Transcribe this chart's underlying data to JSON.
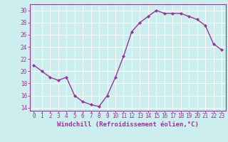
{
  "x": [
    0,
    1,
    2,
    3,
    4,
    5,
    6,
    7,
    8,
    9,
    10,
    11,
    12,
    13,
    14,
    15,
    16,
    17,
    18,
    19,
    20,
    21,
    22,
    23
  ],
  "y": [
    21,
    20,
    19,
    18.5,
    19,
    16,
    15,
    14.5,
    14.2,
    16,
    19,
    22.5,
    26.5,
    28,
    29,
    30,
    29.5,
    29.5,
    29.5,
    29,
    28.5,
    27.5,
    24.5,
    23.5
  ],
  "line_color": "#993399",
  "marker": "D",
  "marker_size": 2.2,
  "bg_color": "#cceeee",
  "grid_color": "#ffffff",
  "xlabel": "Windchill (Refroidissement éolien,°C)",
  "xlabel_color": "#993399",
  "yticks": [
    14,
    16,
    18,
    20,
    22,
    24,
    26,
    28,
    30
  ],
  "xticks": [
    0,
    1,
    2,
    3,
    4,
    5,
    6,
    7,
    8,
    9,
    10,
    11,
    12,
    13,
    14,
    15,
    16,
    17,
    18,
    19,
    20,
    21,
    22,
    23
  ],
  "ylim": [
    13.5,
    31.0
  ],
  "xlim": [
    -0.5,
    23.5
  ],
  "tick_color": "#993399",
  "spine_color": "#993399",
  "line_width": 1.0,
  "font_size": 5.5,
  "xlabel_fontsize": 6.5
}
